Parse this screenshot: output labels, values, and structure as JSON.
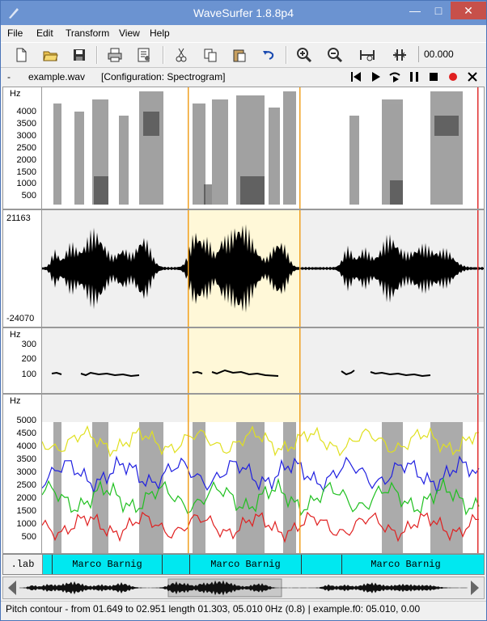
{
  "window": {
    "title": "WaveSurfer 1.8.8p4"
  },
  "menu": [
    "File",
    "Edit",
    "Transform",
    "View",
    "Help"
  ],
  "toolbar": {
    "time": "00.000"
  },
  "info": {
    "left": "-",
    "file": "example.wav",
    "config": "[Configuration: Spectrogram]"
  },
  "panes": {
    "spectrogram": {
      "unit": "Hz",
      "ticks": [
        "4000",
        "3500",
        "3000",
        "2500",
        "2000",
        "1500",
        "1000",
        "500"
      ]
    },
    "waveform": {
      "max": "21163",
      "min": "-24070"
    },
    "pitch": {
      "unit": "Hz",
      "ticks": [
        "300",
        "200",
        "100"
      ]
    },
    "formant": {
      "unit": "Hz",
      "ticks": [
        "5000",
        "4500",
        "4000",
        "3500",
        "3000",
        "2500",
        "2000",
        "1500",
        "1000",
        "500"
      ]
    }
  },
  "colors": {
    "selection": "#fff8d8",
    "marker": "#f0a020",
    "cursor": "#e03030",
    "label_bg": "#00e8f0",
    "f1": "#e02020",
    "f2": "#20c020",
    "f3": "#2020e0",
    "f4": "#e0e020"
  },
  "labels": {
    "tier": ".lab",
    "segments": [
      "Marco Barnig",
      "Marco Barnig",
      "Marco Barnig"
    ]
  },
  "status": "Pitch contour - from 01.649 to 02.951 length 01.303, 05.010 0Hz  (0.8) | example.f0: 05.010, 0.00"
}
